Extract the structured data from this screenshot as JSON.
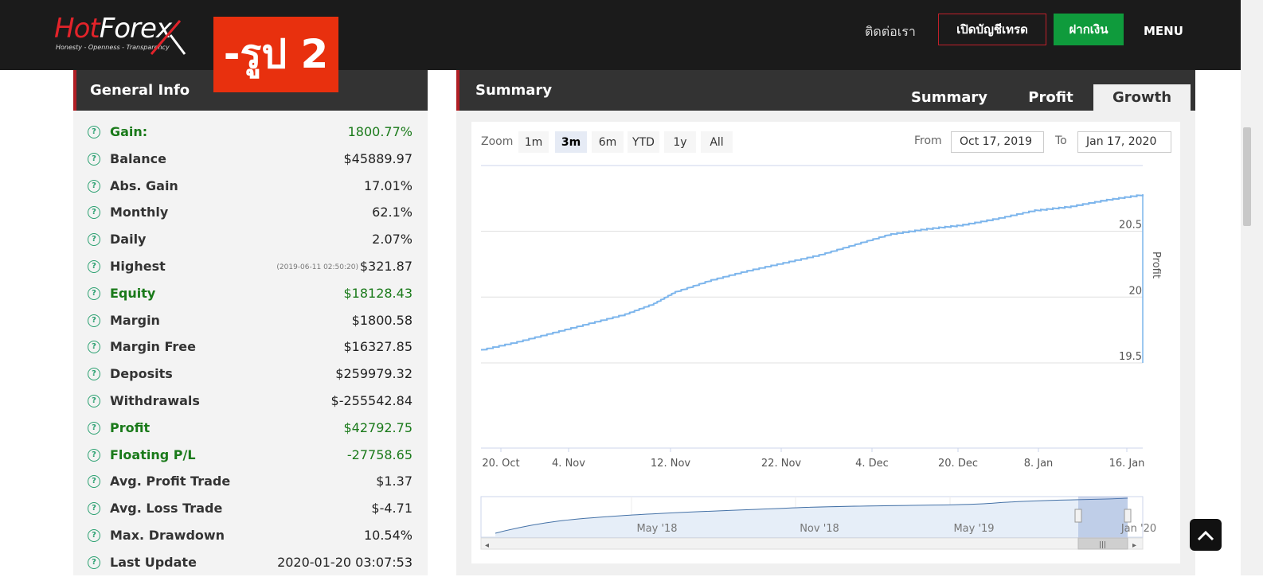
{
  "header": {
    "logo_text_hot": "Hot",
    "logo_text_forex": "Forex",
    "logo_tagline": "Honesty - Openness - Transparency",
    "stamp_text": "-รูป 2",
    "nav_contact": "ติดต่อเรา",
    "nav_open_account": "เปิดบัญชีเทรด",
    "nav_deposit": "ฝากเงิน",
    "nav_menu": "MENU"
  },
  "general_info": {
    "title": "General Info",
    "rows": [
      {
        "label": "Gain:",
        "value": "1800.77%",
        "green": true
      },
      {
        "label": "Balance",
        "value": "$45889.97"
      },
      {
        "label": "Abs. Gain",
        "value": "17.01%"
      },
      {
        "label": "Monthly",
        "value": "62.1%"
      },
      {
        "label": "Daily",
        "value": "2.07%"
      },
      {
        "label": "Highest",
        "value": "$321.87",
        "note": "(2019-06-11 02:50:20)"
      },
      {
        "label": "Equity",
        "value": "$18128.43",
        "green": true
      },
      {
        "label": "Margin",
        "value": "$1800.58"
      },
      {
        "label": "Margin Free",
        "value": "$16327.85"
      },
      {
        "label": "Deposits",
        "value": "$259979.32"
      },
      {
        "label": "Withdrawals",
        "value": "$-255542.84"
      },
      {
        "label": "Profit",
        "value": "$42792.75",
        "green": true
      },
      {
        "label": "Floating P/L",
        "value": "-27758.65",
        "green": true
      },
      {
        "label": "Avg. Profit Trade",
        "value": "$1.37"
      },
      {
        "label": "Avg. Loss Trade",
        "value": "$-4.71"
      },
      {
        "label": "Max. Drawdown",
        "value": "10.54%"
      },
      {
        "label": "Last Update",
        "value": "2020-01-20 03:07:53"
      }
    ]
  },
  "summary": {
    "title": "Summary",
    "tabs": [
      {
        "label": "Summary",
        "active": false
      },
      {
        "label": "Profit",
        "active": false
      },
      {
        "label": "Growth",
        "active": true
      }
    ],
    "zoom_label": "Zoom",
    "zoom_buttons": [
      {
        "label": "1m",
        "active": false
      },
      {
        "label": "3m",
        "active": true
      },
      {
        "label": "6m",
        "active": false
      },
      {
        "label": "YTD",
        "active": false
      },
      {
        "label": "1y",
        "active": false
      },
      {
        "label": "All",
        "active": false
      }
    ],
    "from_label": "From",
    "from_value": "Oct 17, 2019",
    "to_label": "To",
    "to_value": "Jan 17, 2020"
  },
  "chart_data": {
    "type": "line",
    "ylabel": "Profit",
    "y_ticks": [
      19.5,
      20,
      20.5
    ],
    "ylim": [
      19.0,
      20.85
    ],
    "line_color": "#7cb5ec",
    "x_tick_labels": [
      "20. Oct",
      "4. Nov",
      "12. Nov",
      "22. Nov",
      "4. Dec",
      "20. Dec",
      "8. Jan",
      "16. Jan"
    ],
    "series": [
      {
        "x": [
          "2019-10-17",
          "2019-10-22",
          "2019-10-27",
          "2019-11-01",
          "2019-11-06",
          "2019-11-10",
          "2019-11-13",
          "2019-11-18",
          "2019-11-23",
          "2019-11-28",
          "2019-12-03",
          "2019-12-08",
          "2019-12-13",
          "2019-12-18",
          "2019-12-23",
          "2019-12-28",
          "2020-01-02",
          "2020-01-07",
          "2020-01-12",
          "2020-01-17"
        ],
        "values": [
          19.6,
          19.66,
          19.73,
          19.8,
          19.87,
          19.95,
          20.04,
          20.13,
          20.2,
          20.26,
          20.32,
          20.4,
          20.48,
          20.52,
          20.55,
          20.6,
          20.66,
          20.69,
          20.74,
          20.78
        ]
      }
    ],
    "navigator": {
      "x_tick_labels": [
        "May '18",
        "Nov '18",
        "May '19",
        "Jan '20"
      ]
    }
  }
}
